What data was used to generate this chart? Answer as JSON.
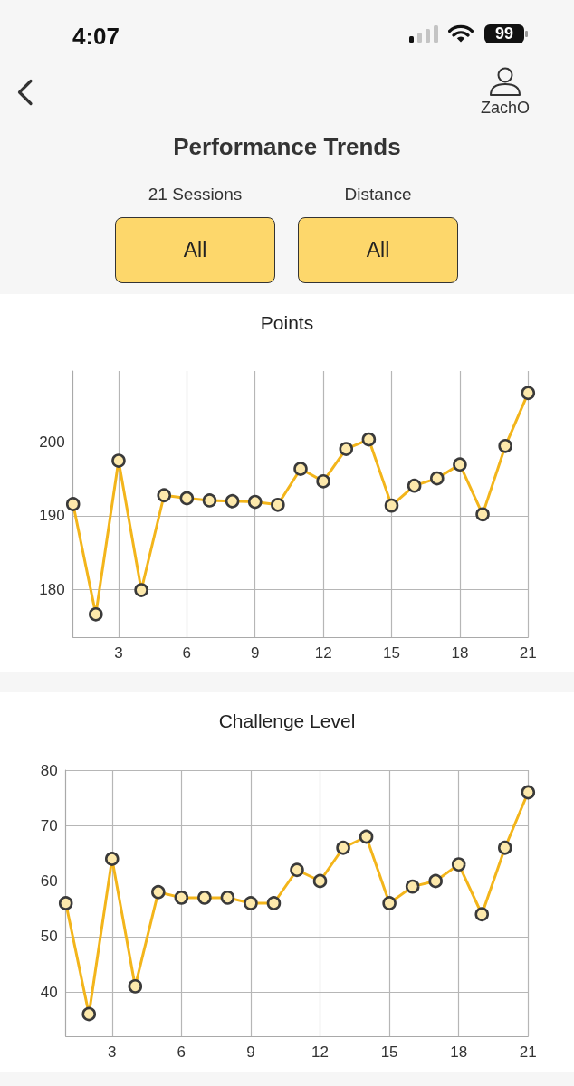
{
  "chart_data": [
    {
      "type": "other",
      "title": "Performance Trends",
      "annotations": [
        "4:07",
        "99",
        "ZachO",
        "21 Sessions",
        "Distance",
        "All",
        "All"
      ]
    },
    {
      "type": "line",
      "title": "Points",
      "x": [
        1,
        2,
        3,
        4,
        5,
        6,
        7,
        8,
        9,
        10,
        11,
        12,
        13,
        14,
        15,
        16,
        17,
        18,
        19,
        20,
        21
      ],
      "values": [
        191.6,
        176.6,
        197.5,
        179.9,
        192.8,
        192.4,
        192.1,
        192.0,
        191.9,
        191.5,
        196.4,
        194.7,
        199.1,
        200.4,
        191.4,
        194.1,
        195.1,
        197.0,
        190.2,
        199.5,
        206.7
      ],
      "color": "#f3b51b",
      "xlim": [
        1,
        21
      ],
      "xticks": [
        3,
        6,
        9,
        12,
        15,
        18,
        21
      ],
      "ylim": [
        173.5,
        209.7
      ],
      "yticks": [
        180,
        190,
        200
      ],
      "grid": true,
      "marker": "circle"
    },
    {
      "type": "line",
      "title": "Challenge Level",
      "x": [
        1,
        2,
        3,
        4,
        5,
        6,
        7,
        8,
        9,
        10,
        11,
        12,
        13,
        14,
        15,
        16,
        17,
        18,
        19,
        20,
        21
      ],
      "values": [
        56,
        36,
        64,
        41,
        58,
        57,
        57,
        57,
        56,
        56,
        62,
        60,
        66,
        68,
        56,
        59,
        60,
        63,
        54,
        66,
        76
      ],
      "color": "#f3b51b",
      "xlim": [
        1,
        21
      ],
      "xticks": [
        3,
        6,
        9,
        12,
        15,
        18,
        21
      ],
      "ylim": [
        32,
        80
      ],
      "yticks": [
        40,
        50,
        60,
        70,
        80
      ],
      "grid": true,
      "marker": "circle"
    }
  ]
}
